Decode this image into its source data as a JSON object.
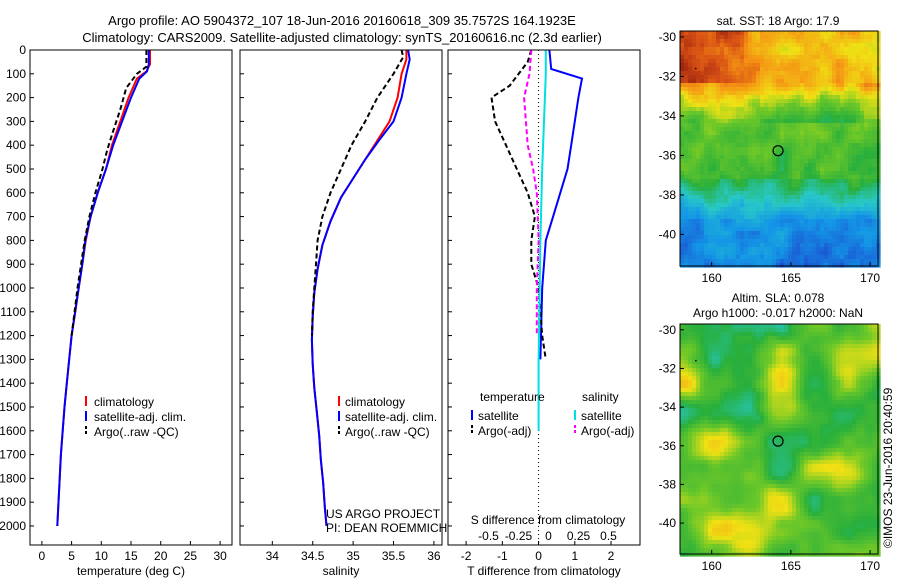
{
  "header": {
    "title_line1": "Argo profile: AO 5904372_107 18-Jun-2016 20160618_309 35.7572S 164.1923E",
    "title_line2": "Climatology: CARS2009. Satellite-adjusted climatology: synTS_20160616.nc (2.3d earlier)"
  },
  "colors": {
    "climatology": "#ff0000",
    "satellite_adj": "#0000ff",
    "argo_temp": "#000000",
    "satellite_salt": "#00e0e0",
    "argo_salt": "#ff00ff"
  },
  "chart_data": [
    {
      "type": "line",
      "id": "temperature_profile",
      "xlabel": "temperature (deg C)",
      "xlim": [
        -2,
        32
      ],
      "xticks": [
        0,
        5,
        10,
        15,
        20,
        25,
        30
      ],
      "ylim": [
        0,
        2080
      ],
      "yticks": [
        0,
        100,
        200,
        300,
        400,
        500,
        600,
        700,
        800,
        900,
        1000,
        1100,
        1200,
        1300,
        1400,
        1500,
        1600,
        1700,
        1800,
        1900,
        2000
      ],
      "legend": [
        "climatology",
        "satellite-adj. clim.",
        "Argo(..raw -QC)"
      ],
      "series": [
        {
          "name": "climatology",
          "style": "solid",
          "color": "#ff0000",
          "points": [
            [
              18.2,
              0
            ],
            [
              18.2,
              60
            ],
            [
              17.6,
              90
            ],
            [
              16.0,
              120
            ],
            [
              14.6,
              200
            ],
            [
              13.2,
              300
            ],
            [
              11.8,
              400
            ],
            [
              10.8,
              500
            ],
            [
              9.4,
              600
            ],
            [
              8.2,
              700
            ],
            [
              7.4,
              800
            ],
            [
              6.8,
              900
            ],
            [
              6.2,
              1000
            ],
            [
              5.6,
              1100
            ],
            [
              5.0,
              1200
            ],
            [
              4.6,
              1300
            ],
            [
              4.2,
              1400
            ],
            [
              3.8,
              1500
            ],
            [
              3.5,
              1600
            ],
            [
              3.2,
              1700
            ],
            [
              3.0,
              1800
            ],
            [
              2.8,
              1900
            ],
            [
              2.6,
              2000
            ]
          ]
        },
        {
          "name": "satellite-adj. clim.",
          "style": "solid",
          "color": "#0000ff",
          "points": [
            [
              18.0,
              0
            ],
            [
              18.0,
              60
            ],
            [
              17.7,
              90
            ],
            [
              16.4,
              120
            ],
            [
              15.0,
              200
            ],
            [
              13.5,
              300
            ],
            [
              12.0,
              400
            ],
            [
              10.8,
              500
            ],
            [
              9.4,
              600
            ],
            [
              8.2,
              700
            ],
            [
              7.3,
              800
            ],
            [
              6.8,
              900
            ],
            [
              6.2,
              1000
            ],
            [
              5.6,
              1100
            ],
            [
              5.0,
              1200
            ],
            [
              4.6,
              1300
            ],
            [
              4.2,
              1400
            ],
            [
              3.8,
              1500
            ],
            [
              3.5,
              1600
            ],
            [
              3.2,
              1700
            ],
            [
              3.0,
              1800
            ],
            [
              2.8,
              1900
            ],
            [
              2.6,
              2000
            ]
          ]
        },
        {
          "name": "Argo(..raw -QC)",
          "style": "dashed",
          "color": "#000000",
          "points": [
            [
              17.6,
              0
            ],
            [
              17.6,
              70
            ],
            [
              16.0,
              100
            ],
            [
              14.2,
              160
            ],
            [
              13.2,
              250
            ],
            [
              12.0,
              340
            ],
            [
              11.0,
              420
            ],
            [
              10.2,
              500
            ],
            [
              9.0,
              600
            ],
            [
              8.0,
              700
            ],
            [
              7.2,
              800
            ],
            [
              6.6,
              900
            ],
            [
              6.0,
              1000
            ],
            [
              5.5,
              1100
            ],
            [
              5.0,
              1200
            ]
          ]
        }
      ]
    },
    {
      "type": "line",
      "id": "salinity_profile",
      "xlabel": "salinity",
      "xlim": [
        33.6,
        36.1
      ],
      "xticks": [
        34,
        34.5,
        35,
        35.5,
        36
      ],
      "ylim": [
        0,
        2080
      ],
      "legend": [
        "climatology",
        "satellite-adj. clim.",
        "Argo(..raw -QC)"
      ],
      "annotation": [
        "US ARGO PROJECT",
        "PI: DEAN ROEMMICH"
      ],
      "series": [
        {
          "name": "climatology",
          "style": "solid",
          "color": "#ff0000",
          "points": [
            [
              35.66,
              0
            ],
            [
              35.66,
              40
            ],
            [
              35.6,
              100
            ],
            [
              35.55,
              200
            ],
            [
              35.45,
              300
            ],
            [
              35.3,
              380
            ],
            [
              35.15,
              460
            ],
            [
              35.0,
              540
            ],
            [
              34.85,
              620
            ],
            [
              34.72,
              720
            ],
            [
              34.62,
              820
            ],
            [
              34.56,
              920
            ],
            [
              34.52,
              1020
            ],
            [
              34.5,
              1120
            ],
            [
              34.49,
              1220
            ],
            [
              34.5,
              1320
            ],
            [
              34.52,
              1420
            ],
            [
              34.55,
              1520
            ],
            [
              34.58,
              1620
            ],
            [
              34.6,
              1720
            ],
            [
              34.63,
              1820
            ],
            [
              34.65,
              1920
            ],
            [
              34.67,
              2000
            ]
          ]
        },
        {
          "name": "satellite-adj. clim.",
          "style": "solid",
          "color": "#0000ff",
          "points": [
            [
              35.68,
              0
            ],
            [
              35.7,
              40
            ],
            [
              35.66,
              100
            ],
            [
              35.6,
              200
            ],
            [
              35.5,
              300
            ],
            [
              35.32,
              380
            ],
            [
              35.15,
              460
            ],
            [
              35.0,
              540
            ],
            [
              34.85,
              620
            ],
            [
              34.72,
              720
            ],
            [
              34.62,
              820
            ],
            [
              34.56,
              920
            ],
            [
              34.52,
              1020
            ],
            [
              34.5,
              1120
            ],
            [
              34.49,
              1220
            ],
            [
              34.5,
              1320
            ],
            [
              34.52,
              1420
            ],
            [
              34.55,
              1520
            ],
            [
              34.58,
              1620
            ],
            [
              34.6,
              1720
            ],
            [
              34.63,
              1820
            ],
            [
              34.65,
              1920
            ],
            [
              34.67,
              2000
            ]
          ]
        },
        {
          "name": "Argo(..raw -QC)",
          "style": "dashed",
          "color": "#000000",
          "points": [
            [
              35.6,
              0
            ],
            [
              35.62,
              30
            ],
            [
              35.5,
              100
            ],
            [
              35.3,
              200
            ],
            [
              35.15,
              300
            ],
            [
              34.98,
              400
            ],
            [
              34.85,
              500
            ],
            [
              34.72,
              600
            ],
            [
              34.62,
              700
            ],
            [
              34.56,
              800
            ],
            [
              34.54,
              900
            ],
            [
              34.52,
              1000
            ],
            [
              34.5,
              1100
            ],
            [
              34.49,
              1200
            ]
          ]
        }
      ]
    },
    {
      "type": "line",
      "id": "difference_profile",
      "xlabel": "T difference from climatology",
      "xlabel_top": "S difference from climatology",
      "xlim": [
        -2.5,
        2.8
      ],
      "xticks": [
        -2,
        -1,
        0,
        1,
        2
      ],
      "xticks_top": [
        -0.5,
        -0.25,
        0,
        0.25,
        0.5
      ],
      "ylim": [
        0,
        2080
      ],
      "legend_headers": [
        "temperature",
        "salinity"
      ],
      "legend": [
        "satellite",
        "Argo(-adj)",
        "satellite",
        "Argo(-adj)"
      ],
      "series": [
        {
          "name": "temperature satellite",
          "style": "solid",
          "color": "#0000ff",
          "points": [
            [
              0.3,
              0
            ],
            [
              0.35,
              80
            ],
            [
              1.2,
              120
            ],
            [
              1.1,
              200
            ],
            [
              1.0,
              300
            ],
            [
              0.9,
              400
            ],
            [
              0.8,
              500
            ],
            [
              0.6,
              600
            ],
            [
              0.4,
              700
            ],
            [
              0.2,
              800
            ],
            [
              0.1,
              1000
            ],
            [
              0.05,
              1300
            ]
          ]
        },
        {
          "name": "temperature Argo(-adj)",
          "style": "dashed",
          "color": "#000000",
          "points": [
            [
              -0.2,
              0
            ],
            [
              -0.3,
              50
            ],
            [
              -0.8,
              150
            ],
            [
              -1.3,
              200
            ],
            [
              -1.2,
              300
            ],
            [
              -0.9,
              400
            ],
            [
              -0.6,
              500
            ],
            [
              -0.3,
              600
            ],
            [
              -0.1,
              700
            ],
            [
              -0.2,
              800
            ],
            [
              -0.2,
              900
            ],
            [
              0.0,
              1000
            ],
            [
              0.1,
              1200
            ],
            [
              0.2,
              1300
            ]
          ]
        },
        {
          "name": "salinity satellite",
          "style": "solid",
          "color": "#00e0e0",
          "points": [
            [
              0.2,
              0
            ],
            [
              0.2,
              100
            ],
            [
              0.15,
              300
            ],
            [
              0.1,
              500
            ],
            [
              0.05,
              800
            ],
            [
              0.0,
              1300
            ],
            [
              0.0,
              1600
            ]
          ]
        },
        {
          "name": "salinity Argo(-adj)",
          "style": "dashed",
          "color": "#ff00ff",
          "points": [
            [
              -0.2,
              0
            ],
            [
              -0.25,
              100
            ],
            [
              -0.4,
              200
            ],
            [
              -0.35,
              300
            ],
            [
              -0.3,
              400
            ],
            [
              -0.15,
              500
            ],
            [
              -0.05,
              600
            ],
            [
              0.0,
              800
            ],
            [
              -0.05,
              1000
            ],
            [
              -0.05,
              1200
            ]
          ]
        }
      ]
    },
    {
      "type": "heatmap",
      "id": "sst_map",
      "title": "sat. SST: 18 Argo: 17.9",
      "xlim": [
        158,
        170.5
      ],
      "ylim": [
        -41.6,
        -29.7
      ],
      "xticks": [
        160,
        165,
        170
      ],
      "yticks": [
        -30,
        -32,
        -34,
        -36,
        -38,
        -40
      ],
      "marker": {
        "lon": 164.19,
        "lat": -35.76
      }
    },
    {
      "type": "heatmap",
      "id": "sla_map",
      "title_line1": "Altim. SLA: 0.078",
      "title_line2": "Argo h1000: -0.017 h2000: NaN",
      "xlim": [
        158,
        170.5
      ],
      "ylim": [
        -41.6,
        -29.7
      ],
      "xticks": [
        160,
        165,
        170
      ],
      "yticks": [
        -30,
        -32,
        -34,
        -36,
        -38,
        -40
      ],
      "marker": {
        "lon": 164.19,
        "lat": -35.76
      }
    }
  ],
  "footer": {
    "credit": "©IMOS 23-Jun-2016 20:40:59"
  }
}
